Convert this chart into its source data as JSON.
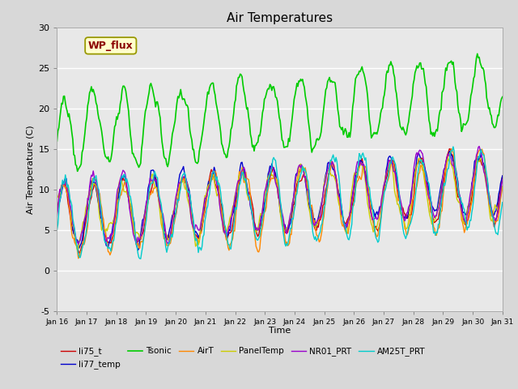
{
  "title": "Air Temperatures",
  "xlabel": "Time",
  "ylabel": "Air Temperature (C)",
  "ylim": [
    -5,
    30
  ],
  "xlim_days": [
    16,
    31
  ],
  "xtick_labels": [
    "Jan 16",
    "Jan 17",
    "Jan 18",
    "Jan 19",
    "Jan 20",
    "Jan 21",
    "Jan 22",
    "Jan 23",
    "Jan 24",
    "Jan 25",
    "Jan 26",
    "Jan 27",
    "Jan 28",
    "Jan 29",
    "Jan 30",
    "Jan 31"
  ],
  "ytick_values": [
    -5,
    0,
    5,
    10,
    15,
    20,
    25,
    30
  ],
  "fig_bg_color": "#d8d8d8",
  "plot_bg_color": "#e8e8e8",
  "series": [
    {
      "name": "li75_t",
      "color": "#cc0000",
      "lw": 1.0
    },
    {
      "name": "li77_temp",
      "color": "#0000cc",
      "lw": 1.0
    },
    {
      "name": "Tsonic",
      "color": "#00cc00",
      "lw": 1.2
    },
    {
      "name": "AirT",
      "color": "#ff8800",
      "lw": 1.0
    },
    {
      "name": "PanelTemp",
      "color": "#cccc00",
      "lw": 1.0
    },
    {
      "name": "NR01_PRT",
      "color": "#9900cc",
      "lw": 1.0
    },
    {
      "name": "AM25T_PRT",
      "color": "#00cccc",
      "lw": 1.0
    }
  ],
  "annotation_text": "WP_flux",
  "n_points": 480
}
